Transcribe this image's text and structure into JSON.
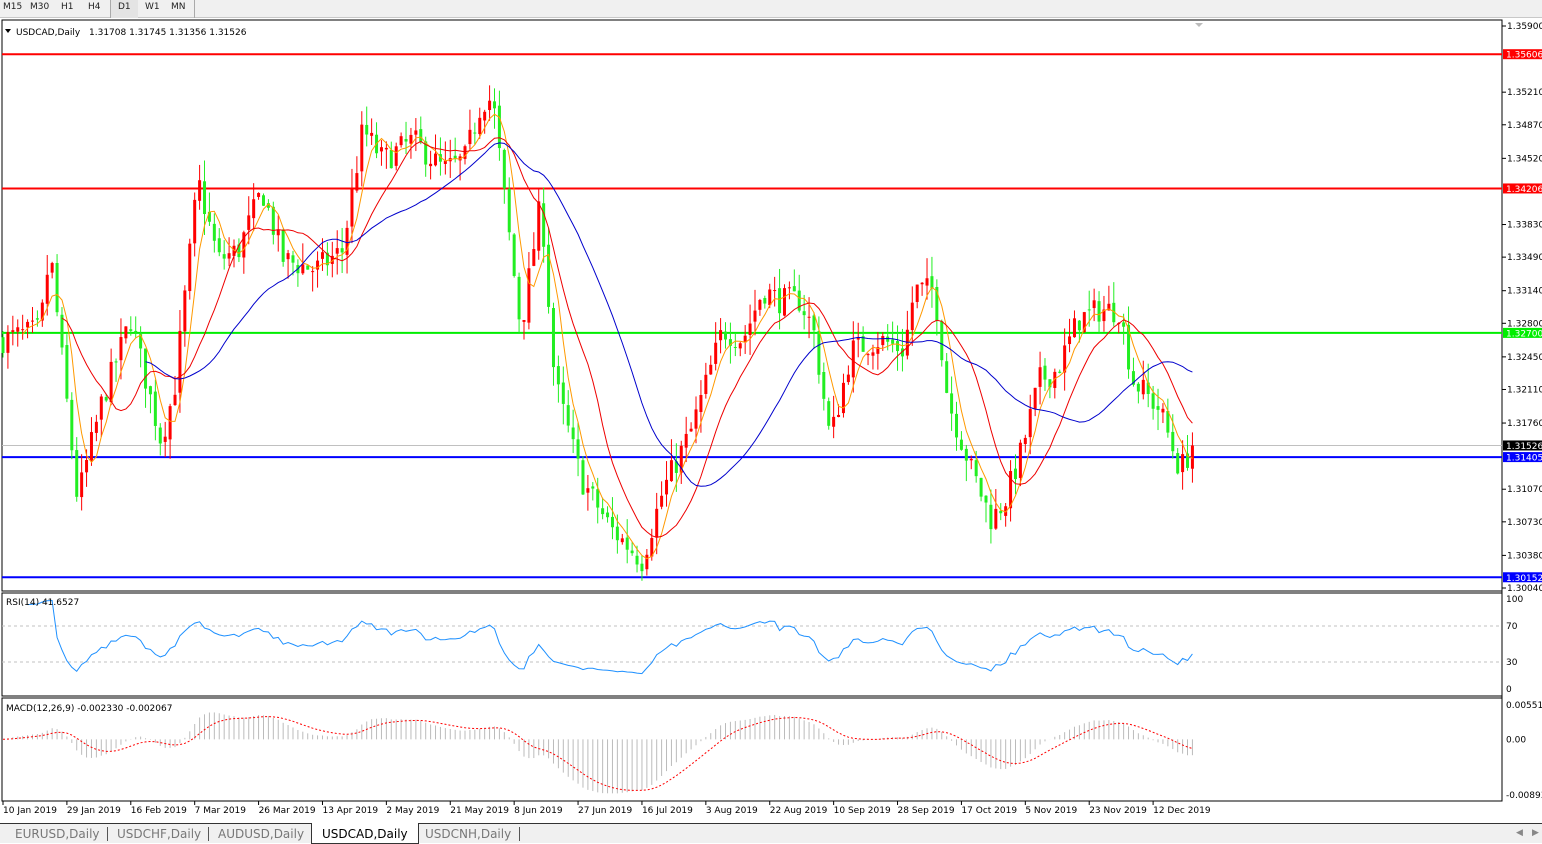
{
  "toolbar": {
    "timeframes": [
      "M15",
      "M30",
      "H1",
      "H4",
      "D1",
      "W1",
      "MN"
    ],
    "active": "D1"
  },
  "chart_header": {
    "symbol": "USDCAD,Daily",
    "ohlc": "1.31708 1.31745 1.31356 1.31526"
  },
  "tabs": [
    "EURUSD,Daily",
    "USDCHF,Daily",
    "AUDUSD,Daily",
    "USDCAD,Daily",
    "USDCNH,Daily"
  ],
  "active_tab": "USDCAD,Daily",
  "colors": {
    "bull": "#ff0000",
    "bear": "#22ee22",
    "ma_fast": "#ff9900",
    "ma_mid": "#ee0000",
    "ma_slow": "#0000cc",
    "rsi": "#1e90ff",
    "macd_signal": "#ff0000",
    "macd_hist": "#bbbbbb"
  },
  "chart_data": {
    "type": "candlestick",
    "symbol": "USDCAD",
    "timeframe": "Daily",
    "ylim": [
      1.3004,
      1.359
    ],
    "y_ticks": [
      "1.35900",
      "1.35210",
      "1.34870",
      "1.34520",
      "1.33830",
      "1.33490",
      "1.33140",
      "1.32800",
      "1.32450",
      "1.32110",
      "1.31760",
      "1.31070",
      "1.30730",
      "1.30380",
      "1.30040"
    ],
    "x_ticks": [
      "10 Jan 2019",
      "29 Jan 2019",
      "16 Feb 2019",
      "7 Mar 2019",
      "26 Mar 2019",
      "13 Apr 2019",
      "2 May 2019",
      "21 May 2019",
      "8 Jun 2019",
      "27 Jun 2019",
      "16 Jul 2019",
      "3 Aug 2019",
      "22 Aug 2019",
      "10 Sep 2019",
      "28 Sep 2019",
      "17 Oct 2019",
      "5 Nov 2019",
      "23 Nov 2019",
      "12 Dec 2019"
    ],
    "horizontal_lines": [
      {
        "price": "1.35606",
        "color": "#ff0000"
      },
      {
        "price": "1.34206",
        "color": "#ff0000"
      },
      {
        "price": "1.32700",
        "color": "#00ee00"
      },
      {
        "price": "1.31405",
        "color": "#0000ff"
      },
      {
        "price": "1.30152",
        "color": "#0000ff"
      }
    ],
    "current_price": "1.31526",
    "close_approx": [
      [
        "2019-01-10",
        1.3263
      ],
      [
        "2019-01-21",
        1.3273
      ],
      [
        "2019-01-24",
        1.3356
      ],
      [
        "2019-02-01",
        1.3096
      ],
      [
        "2019-02-08",
        1.32
      ],
      [
        "2019-02-16",
        1.3284
      ],
      [
        "2019-02-25",
        1.3158
      ],
      [
        "2019-03-01",
        1.3211
      ],
      [
        "2019-03-08",
        1.3429
      ],
      [
        "2019-03-14",
        1.3346
      ],
      [
        "2019-03-20",
        1.3356
      ],
      [
        "2019-03-27",
        1.3419
      ],
      [
        "2019-04-02",
        1.3346
      ],
      [
        "2019-04-11",
        1.3336
      ],
      [
        "2019-04-19",
        1.3356
      ],
      [
        "2019-04-25",
        1.3482
      ],
      [
        "2019-05-01",
        1.345
      ],
      [
        "2019-05-10",
        1.3471
      ],
      [
        "2019-05-19",
        1.344
      ],
      [
        "2019-05-25",
        1.345
      ],
      [
        "2019-05-30",
        1.3513
      ],
      [
        "2019-06-02",
        1.3513
      ],
      [
        "2019-06-05",
        1.3419
      ],
      [
        "2019-06-10",
        1.3273
      ],
      [
        "2019-06-16",
        1.3409
      ],
      [
        "2019-06-20",
        1.3221
      ],
      [
        "2019-06-28",
        1.3117
      ],
      [
        "2019-07-07",
        1.3065
      ],
      [
        "2019-07-16",
        1.3033
      ],
      [
        "2019-07-22",
        1.3106
      ],
      [
        "2019-07-30",
        1.3169
      ],
      [
        "2019-08-08",
        1.3273
      ],
      [
        "2019-08-14",
        1.3263
      ],
      [
        "2019-08-20",
        1.3315
      ],
      [
        "2019-08-25",
        1.3304
      ],
      [
        "2019-08-31",
        1.3304
      ],
      [
        "2019-09-04",
        1.3273
      ],
      [
        "2019-09-09",
        1.3158
      ],
      [
        "2019-09-15",
        1.3252
      ],
      [
        "2019-09-23",
        1.3263
      ],
      [
        "2019-09-30",
        1.3252
      ],
      [
        "2019-10-03",
        1.3315
      ],
      [
        "2019-10-09",
        1.3315
      ],
      [
        "2019-10-13",
        1.32
      ],
      [
        "2019-10-20",
        1.3127
      ],
      [
        "2019-10-26",
        1.3075
      ],
      [
        "2019-10-30",
        1.3096
      ],
      [
        "2019-11-04",
        1.3148
      ],
      [
        "2019-11-09",
        1.3221
      ],
      [
        "2019-11-14",
        1.3231
      ],
      [
        "2019-11-20",
        1.3284
      ],
      [
        "2019-11-26",
        1.3294
      ],
      [
        "2019-12-02",
        1.3294
      ],
      [
        "2019-12-06",
        1.3221
      ],
      [
        "2019-12-14",
        1.319
      ],
      [
        "2019-12-20",
        1.3127
      ],
      [
        "2019-12-24",
        1.31526
      ]
    ],
    "indicators": {
      "rsi": {
        "label": "RSI(14) 41.6527",
        "ylim": [
          0,
          100
        ],
        "levels": [
          30,
          70
        ],
        "ticks": [
          "100",
          "70",
          "30",
          "0"
        ]
      },
      "macd": {
        "label": "MACD(12,26,9) -0.002330 -0.002067",
        "ylim": [
          -0.00893,
          0.005512
        ],
        "ticks": [
          "0.005512",
          "0.00",
          "-0.00893"
        ]
      }
    }
  }
}
